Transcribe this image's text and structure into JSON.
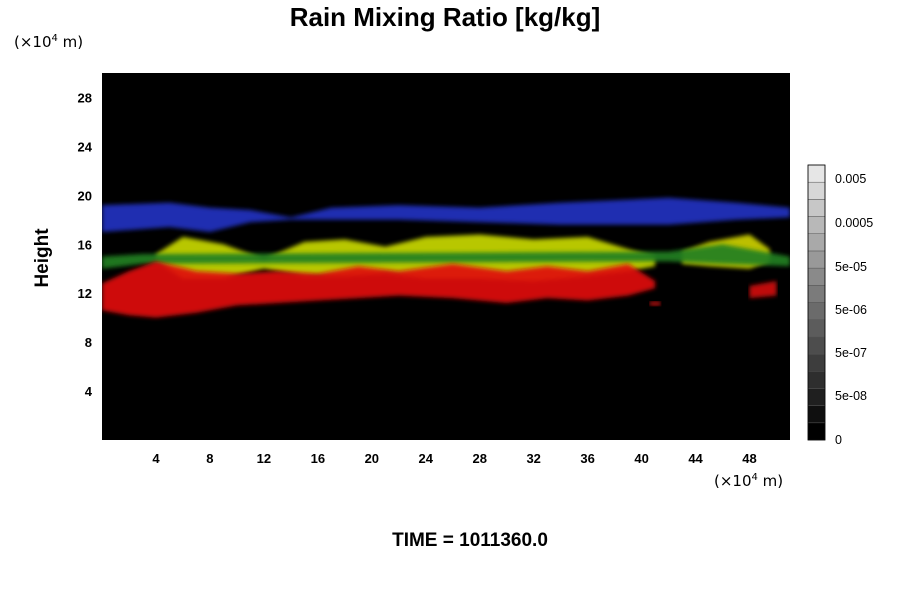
{
  "chart_data": {
    "type": "heatmap",
    "title": "Rain Mixing Ratio [kg/kg]",
    "ylabel": "Height",
    "xlabel": "",
    "x_unit": {
      "prefix": "(×10",
      "exp": "4",
      "suffix": " m)"
    },
    "y_unit": {
      "prefix": "(×10",
      "exp": "4",
      "suffix": " m)"
    },
    "xlim": [
      0,
      51
    ],
    "ylim": [
      0,
      30
    ],
    "x_ticks": [
      4,
      8,
      12,
      16,
      20,
      24,
      28,
      32,
      36,
      40,
      44,
      48
    ],
    "y_ticks": [
      4,
      8,
      12,
      16,
      20,
      24,
      28
    ],
    "background_color": "#000000",
    "layers": [
      {
        "color": "#2030c0",
        "ranges": [
          [
            0,
            19.2,
            17.0
          ],
          [
            5,
            19.4,
            17.4
          ],
          [
            8,
            19.0,
            17.0
          ],
          [
            11,
            18.8,
            17.8
          ],
          [
            14,
            18.2,
            18.0
          ],
          [
            17,
            19.0,
            18.0
          ],
          [
            22,
            19.2,
            18.0
          ],
          [
            28,
            19.0,
            17.8
          ],
          [
            34,
            19.4,
            17.6
          ],
          [
            38,
            19.6,
            17.6
          ],
          [
            42,
            19.8,
            17.6
          ],
          [
            47,
            19.4,
            18.0
          ],
          [
            51,
            19.0,
            18.2
          ]
        ]
      },
      {
        "color": "#c8d800",
        "ranges": [
          [
            4,
            15.2,
            14.6
          ],
          [
            6,
            16.6,
            13.2
          ],
          [
            9,
            16.0,
            13.2
          ],
          [
            12,
            14.8,
            14.0
          ],
          [
            15,
            16.2,
            13.4
          ],
          [
            18,
            16.4,
            13.4
          ],
          [
            21,
            15.8,
            13.6
          ],
          [
            24,
            16.6,
            13.2
          ],
          [
            28,
            16.8,
            13.2
          ],
          [
            32,
            16.4,
            13.0
          ],
          [
            36,
            16.6,
            13.4
          ],
          [
            39,
            15.6,
            13.8
          ],
          [
            41,
            15.0,
            14.2
          ]
        ]
      },
      {
        "color": "#ccd000",
        "ranges": [
          [
            43,
            15.4,
            14.4
          ],
          [
            45,
            16.2,
            14.2
          ],
          [
            48,
            16.8,
            14.0
          ],
          [
            49.5,
            15.6,
            14.6
          ]
        ]
      },
      {
        "color": "#208020",
        "ranges": [
          [
            0,
            15.0,
            14.0
          ],
          [
            3,
            15.2,
            14.4
          ],
          [
            42,
            15.4,
            14.6
          ],
          [
            46,
            16.0,
            14.4
          ],
          [
            51,
            15.0,
            14.2
          ]
        ]
      },
      {
        "color": "#e01010",
        "ranges": [
          [
            0,
            12.8,
            10.6
          ],
          [
            2,
            13.8,
            10.2
          ],
          [
            4,
            14.6,
            10.0
          ],
          [
            7,
            13.8,
            10.4
          ],
          [
            10,
            13.6,
            11.0
          ],
          [
            13,
            13.8,
            11.2
          ],
          [
            16,
            13.6,
            11.4
          ],
          [
            19,
            14.2,
            11.6
          ],
          [
            22,
            13.8,
            11.8
          ],
          [
            26,
            14.4,
            11.6
          ],
          [
            30,
            13.8,
            11.2
          ],
          [
            33,
            14.2,
            11.6
          ],
          [
            36,
            13.8,
            11.4
          ],
          [
            39,
            14.4,
            11.8
          ],
          [
            41,
            13.0,
            12.4
          ]
        ]
      },
      {
        "color": "#d01010",
        "ranges": [
          [
            48,
            12.6,
            11.6
          ],
          [
            50,
            13.0,
            11.8
          ]
        ]
      },
      {
        "color": "#e01010",
        "ranges": [
          [
            40.6,
            11.3,
            11.0
          ],
          [
            41.4,
            11.3,
            11.0
          ]
        ]
      }
    ],
    "colorbar": {
      "labels": [
        "0.005",
        "0.0005",
        "5e-05",
        "5e-06",
        "5e-07",
        "5e-08",
        "0"
      ],
      "levels": 16
    },
    "time_label": "TIME = 1011360.0"
  }
}
